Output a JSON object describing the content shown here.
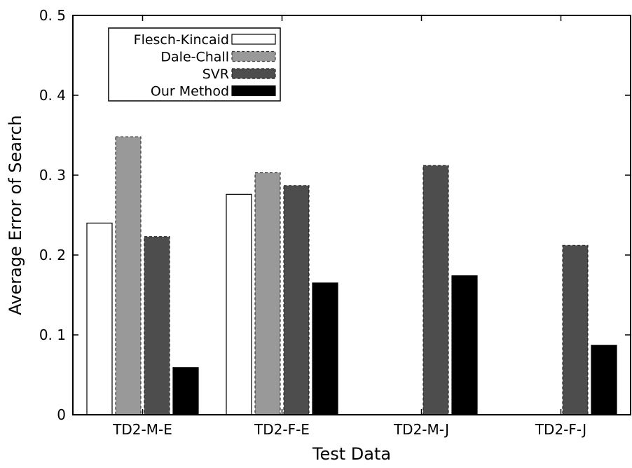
{
  "chart_data": {
    "type": "bar",
    "title": "",
    "xlabel": "Test Data",
    "ylabel": "Average Error of Search",
    "ylim": [
      0,
      0.5
    ],
    "yticks": [
      "0",
      "0. 1",
      "0. 2",
      "0. 3",
      "0. 4",
      "0. 5"
    ],
    "ytick_values": [
      0,
      0.1,
      0.2,
      0.3,
      0.4,
      0.5
    ],
    "categories": [
      "TD2-M-E",
      "TD2-F-E",
      "TD2-M-J",
      "TD2-F-J"
    ],
    "grid": false,
    "legend_position": "top-left",
    "series": [
      {
        "name": "Flesch-Kincaid",
        "values": [
          0.24,
          0.276,
          null,
          null
        ],
        "fill": "#ffffff",
        "stroke": "#000000",
        "dashed": false
      },
      {
        "name": "Dale-Chall",
        "values": [
          0.348,
          0.303,
          null,
          null
        ],
        "fill": "#999999",
        "stroke": "#333333",
        "dashed": true
      },
      {
        "name": "SVR",
        "values": [
          0.223,
          0.287,
          0.312,
          0.212
        ],
        "fill": "#4d4d4d",
        "stroke": "#222222",
        "dashed": true
      },
      {
        "name": "Our Method",
        "values": [
          0.059,
          0.165,
          0.174,
          0.087
        ],
        "fill": "#000000",
        "stroke": "#000000",
        "dashed": false
      }
    ]
  }
}
